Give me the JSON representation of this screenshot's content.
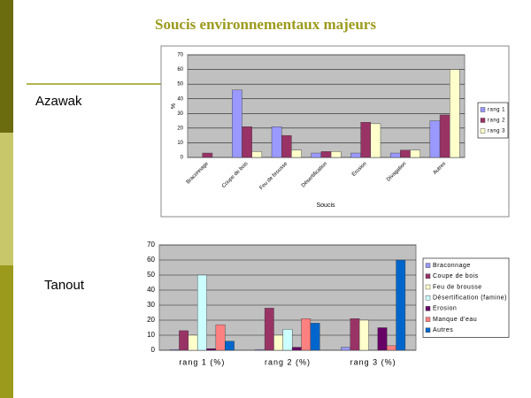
{
  "title": "Soucis environnementaux majeurs",
  "chart_data": [
    {
      "type": "bar",
      "title": "Azawak",
      "ylabel": "%",
      "xlabel": "Soucis",
      "categories": [
        "Braconnage",
        "Coupe de bois",
        "Feu de brousse",
        "Désertification",
        "Érosion",
        "Divagation",
        "Autres"
      ],
      "series": [
        {
          "name": "rang 1",
          "color": "#9999ff",
          "values": [
            0,
            46,
            21,
            3,
            3,
            3,
            25
          ]
        },
        {
          "name": "rang 2",
          "color": "#993366",
          "values": [
            3,
            21,
            15,
            4,
            24,
            5,
            29
          ]
        },
        {
          "name": "rang 3",
          "color": "#ffffcc",
          "values": [
            0,
            4,
            5,
            4,
            23,
            5,
            60
          ]
        }
      ],
      "ylim": [
        0,
        70
      ],
      "yticks": [
        0,
        10,
        20,
        30,
        40,
        50,
        60,
        70
      ],
      "grid": true,
      "legend": "right"
    },
    {
      "type": "bar",
      "title": "Tanout",
      "categories": [
        "rang 1 (%)",
        "rang 2 (%)",
        "rang 3 (%)"
      ],
      "series": [
        {
          "name": "Braconnage",
          "color": "#9999ff",
          "values": [
            0.5,
            0.5,
            2
          ]
        },
        {
          "name": "Coupe de bois",
          "color": "#993366",
          "values": [
            13,
            28,
            21
          ]
        },
        {
          "name": "Feu de brousse",
          "color": "#ffffcc",
          "values": [
            10,
            10,
            20
          ]
        },
        {
          "name": "Désertification (famine)",
          "color": "#ccffff",
          "values": [
            50,
            14,
            0
          ]
        },
        {
          "name": "Erosion",
          "color": "#660066",
          "values": [
            1,
            2,
            15
          ]
        },
        {
          "name": "Manque d'eau",
          "color": "#ff8080",
          "values": [
            17,
            21,
            3
          ]
        },
        {
          "name": "Autres",
          "color": "#0066cc",
          "values": [
            6,
            18,
            60
          ]
        }
      ],
      "ylim": [
        0,
        70
      ],
      "yticks": [
        0,
        10,
        20,
        30,
        40,
        50,
        60,
        70
      ],
      "grid": true,
      "legend": "right"
    }
  ]
}
